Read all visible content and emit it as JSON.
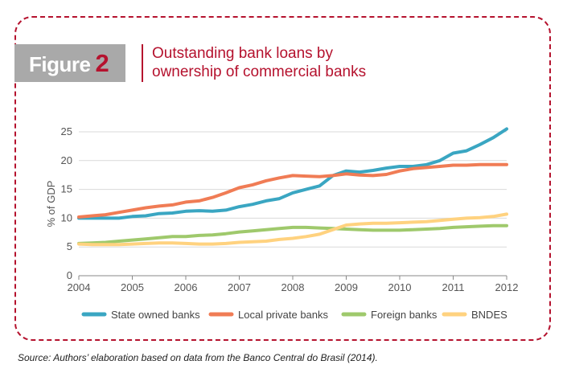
{
  "figure": {
    "label_word": "Figure",
    "label_number": "2"
  },
  "title_lines": [
    "Outstanding bank loans by",
    "ownership of commercial banks"
  ],
  "source": "Source: Authors’ elaboration based on data from the Banco Central do Brasil (2014).",
  "colors": {
    "frame": "#b5122e",
    "title": "#b5122e",
    "grid": "#d9d9d9",
    "axis": "#888888"
  },
  "chart_data": {
    "type": "line",
    "title": "",
    "xlabel": "",
    "ylabel": "% of GDP",
    "xlim": [
      2004,
      2012
    ],
    "ylim": [
      0,
      25
    ],
    "xticks": [
      "2004",
      "2005",
      "2006",
      "2007",
      "2008",
      "2009",
      "2010",
      "2011",
      "2012"
    ],
    "yticks": [
      "0",
      "5",
      "10",
      "15",
      "20",
      "25"
    ],
    "grid": "horizontal",
    "legend_position": "bottom",
    "x": [
      2004.0,
      2004.25,
      2004.5,
      2004.75,
      2005.0,
      2005.25,
      2005.5,
      2005.75,
      2006.0,
      2006.25,
      2006.5,
      2006.75,
      2007.0,
      2007.25,
      2007.5,
      2007.75,
      2008.0,
      2008.25,
      2008.5,
      2008.75,
      2009.0,
      2009.25,
      2009.5,
      2009.75,
      2010.0,
      2010.25,
      2010.5,
      2010.75,
      2011.0,
      2011.25,
      2011.5,
      2011.75,
      2012.0
    ],
    "series": [
      {
        "name": "State owned banks",
        "color": "#3aa6c2",
        "values": [
          10.0,
          10.0,
          10.0,
          10.0,
          10.3,
          10.4,
          10.8,
          10.9,
          11.2,
          11.3,
          11.2,
          11.4,
          12.0,
          12.4,
          13.0,
          13.4,
          14.4,
          15.0,
          15.6,
          17.4,
          18.2,
          18.0,
          18.3,
          18.7,
          19.0,
          19.0,
          19.3,
          20.0,
          21.3,
          21.7,
          22.8,
          24.0,
          25.5
        ]
      },
      {
        "name": "Local private banks",
        "color": "#f07c55",
        "values": [
          10.2,
          10.4,
          10.6,
          11.0,
          11.4,
          11.8,
          12.1,
          12.3,
          12.8,
          13.0,
          13.6,
          14.4,
          15.3,
          15.8,
          16.5,
          17.0,
          17.4,
          17.3,
          17.2,
          17.4,
          17.7,
          17.5,
          17.4,
          17.6,
          18.2,
          18.6,
          18.8,
          19.0,
          19.2,
          19.2,
          19.3,
          19.3,
          19.3
        ]
      },
      {
        "name": "Foreign banks",
        "color": "#9fc96c",
        "values": [
          5.6,
          5.7,
          5.8,
          6.0,
          6.2,
          6.4,
          6.6,
          6.8,
          6.8,
          7.0,
          7.1,
          7.3,
          7.6,
          7.8,
          8.0,
          8.2,
          8.4,
          8.4,
          8.3,
          8.2,
          8.1,
          8.0,
          7.9,
          7.9,
          7.9,
          8.0,
          8.1,
          8.2,
          8.4,
          8.5,
          8.6,
          8.7,
          8.7
        ]
      },
      {
        "name": "BNDES",
        "color": "#ffd27f",
        "values": [
          5.5,
          5.4,
          5.4,
          5.4,
          5.5,
          5.6,
          5.7,
          5.7,
          5.6,
          5.5,
          5.5,
          5.6,
          5.8,
          5.9,
          6.0,
          6.3,
          6.5,
          6.8,
          7.2,
          8.0,
          8.8,
          9.0,
          9.1,
          9.1,
          9.2,
          9.3,
          9.4,
          9.6,
          9.8,
          10.0,
          10.1,
          10.3,
          10.7
        ]
      }
    ]
  }
}
